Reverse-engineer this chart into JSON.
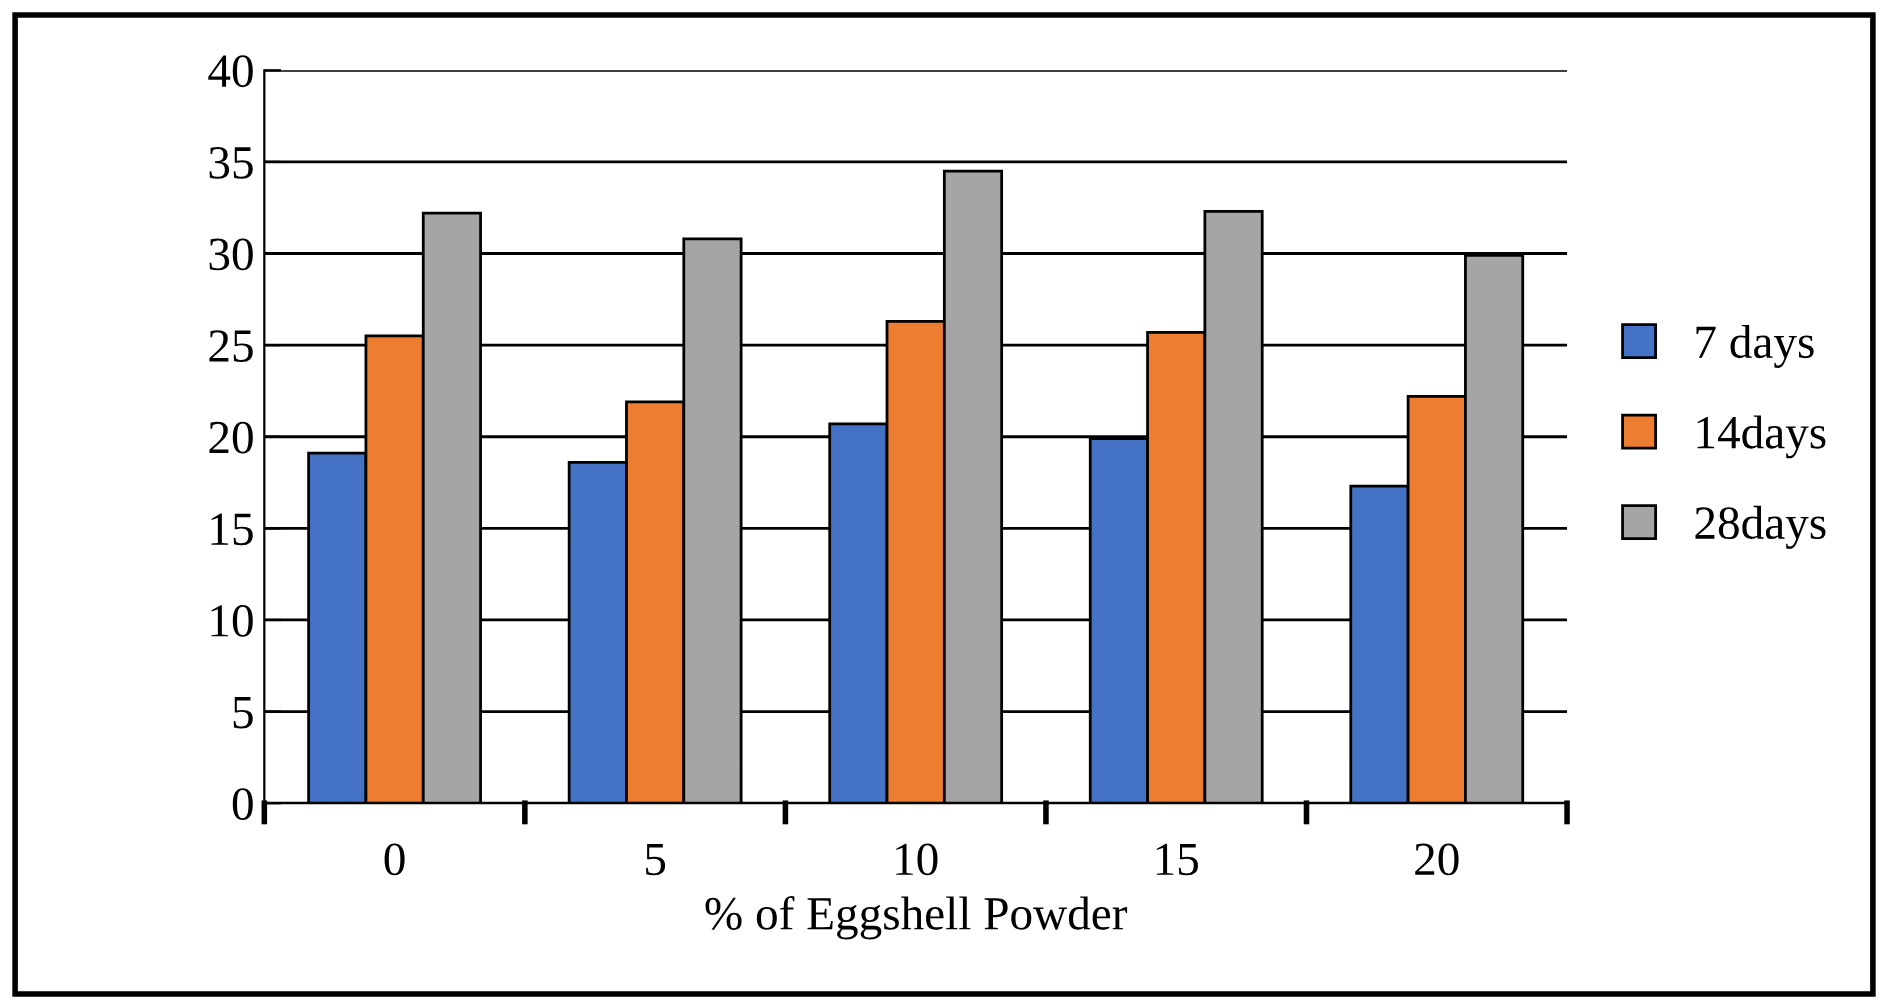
{
  "chart_data": {
    "type": "bar",
    "xlabel": "% of Eggshell Powder",
    "categories": [
      "0",
      "5",
      "10",
      "15",
      "20"
    ],
    "series": [
      {
        "name": "7 days",
        "color": "#4472c4",
        "values": [
          19.1,
          18.6,
          20.7,
          19.9,
          17.3
        ]
      },
      {
        "name": "14days",
        "color": "#ed7d31",
        "values": [
          25.5,
          21.9,
          26.3,
          25.7,
          22.2
        ]
      },
      {
        "name": "28days",
        "color": "#a5a5a5",
        "values": [
          32.2,
          30.8,
          34.5,
          32.3,
          29.9
        ]
      }
    ],
    "ylim": [
      0,
      40
    ],
    "yticks": [
      0,
      5,
      10,
      15,
      20,
      25,
      30,
      35,
      40
    ],
    "grid": "y",
    "legend": "right"
  }
}
